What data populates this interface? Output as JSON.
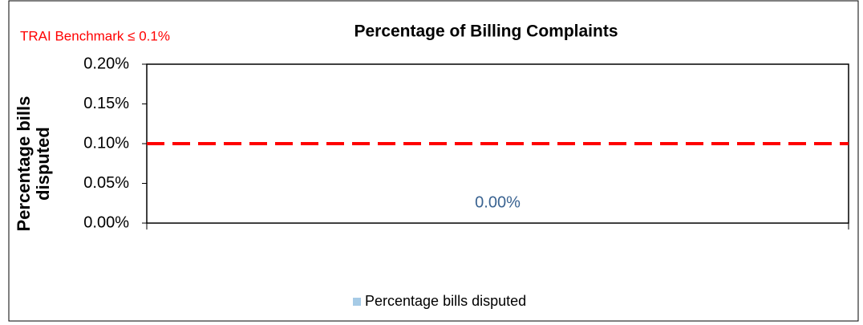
{
  "chart_data": {
    "type": "bar",
    "title": "Percentage of Billing Complaints",
    "y_label": "Percentage bills disputed",
    "categories": [
      null
    ],
    "series": [
      {
        "name": "Percentage bills disputed",
        "color": "#a6cbe6",
        "values": [
          0
        ],
        "value_labels": [
          "0.00%"
        ]
      }
    ],
    "ylim": [
      0,
      0.2
    ],
    "yticks": [
      {
        "value": 0,
        "label": "0.00%"
      },
      {
        "value": 0.05,
        "label": "0.05%"
      },
      {
        "value": 0.1,
        "label": "0.10%"
      },
      {
        "value": 0.15,
        "label": "0.15%"
      },
      {
        "value": 0.2,
        "label": "0.20%"
      }
    ],
    "reference_line": {
      "label": "TRAI Benchmark ≤ 0.1%",
      "value": 0.1,
      "color": "#ff0000",
      "style": "dashed"
    },
    "grid": false,
    "legend": "bottom"
  }
}
